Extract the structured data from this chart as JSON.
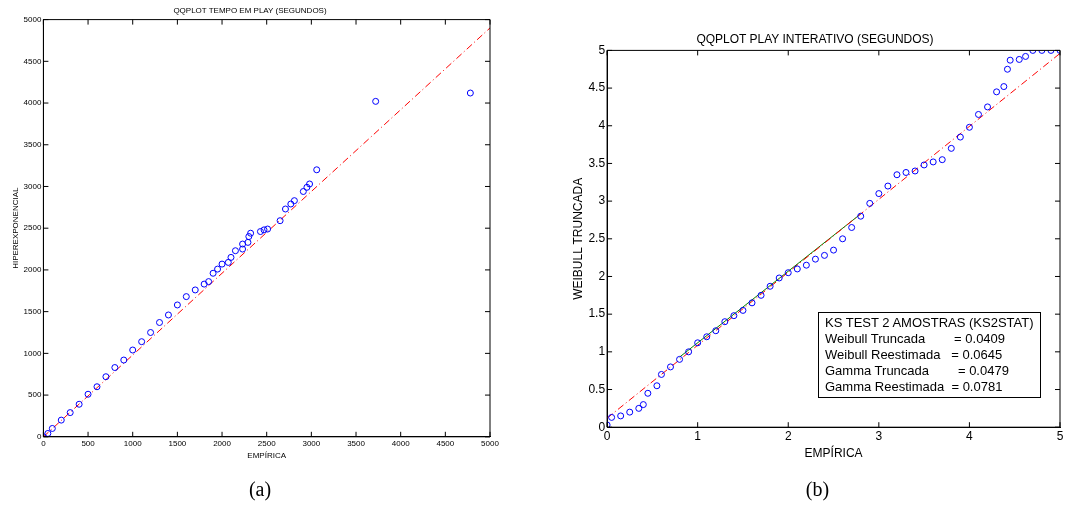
{
  "chart_data": [
    {
      "type": "scatter",
      "title": "QQPLOT TEMPO EM PLAY (SEGUNDOS)",
      "xlabel": "EMPÍRICA",
      "ylabel": "HIPEREXPONENCIAL",
      "xlim": [
        0,
        5000
      ],
      "ylim": [
        0,
        5000
      ],
      "xticks": [
        0,
        500,
        1000,
        1500,
        2000,
        2500,
        3000,
        3500,
        4000,
        4500,
        5000
      ],
      "yticks": [
        0,
        500,
        1000,
        1500,
        2000,
        2500,
        3000,
        3500,
        4000,
        4500,
        5000
      ],
      "series": [
        {
          "marker": "circle",
          "color": "#0000ff",
          "x": [
            0,
            50,
            100,
            200,
            300,
            400,
            500,
            600,
            700,
            800,
            900,
            1000,
            1100,
            1200,
            1300,
            1400,
            1500,
            1600,
            1700,
            1800,
            1850,
            1900,
            1950,
            2000,
            2070,
            2100,
            2150,
            2230,
            2230,
            2290,
            2300,
            2320,
            2430,
            2470,
            2510,
            2650,
            2710,
            2770,
            2810,
            2910,
            2950,
            2980,
            3060,
            3720,
            4780
          ],
          "values": [
            0,
            40,
            100,
            200,
            290,
            390,
            510,
            600,
            720,
            830,
            920,
            1040,
            1140,
            1250,
            1370,
            1460,
            1580,
            1680,
            1760,
            1830,
            1860,
            1960,
            2010,
            2070,
            2090,
            2150,
            2230,
            2310,
            2250,
            2330,
            2400,
            2440,
            2460,
            2480,
            2490,
            2590,
            2730,
            2790,
            2830,
            2940,
            2990,
            3030,
            3200,
            4020,
            4120
          ]
        },
        {
          "type": "line",
          "color": "#ff0000",
          "line_style": "dashed",
          "x": [
            0,
            5000
          ],
          "values": [
            0,
            4900
          ]
        }
      ],
      "annotations": [
        "(a)"
      ]
    },
    {
      "type": "scatter",
      "title": "QQPLOT PLAY INTERATIVO (SEGUNDOS)",
      "xlabel": "EMPÍRICA",
      "ylabel": "WEIBULL TRUNCADA",
      "xlim": [
        0,
        5
      ],
      "ylim": [
        0,
        5
      ],
      "xticks": [
        0,
        1,
        2,
        3,
        4,
        5
      ],
      "yticks": [
        0,
        0.5,
        1,
        1.5,
        2,
        2.5,
        3,
        3.5,
        4,
        4.5,
        5
      ],
      "series": [
        {
          "marker": "circle",
          "color": "#0000ff",
          "x": [
            0,
            0.05,
            0.15,
            0.25,
            0.35,
            0.4,
            0.45,
            0.55,
            0.6,
            0.7,
            0.8,
            0.9,
            1.0,
            1.1,
            1.2,
            1.3,
            1.4,
            1.5,
            1.6,
            1.7,
            1.8,
            1.9,
            2.0,
            2.1,
            2.2,
            2.3,
            2.4,
            2.5,
            2.6,
            2.7,
            2.8,
            2.9,
            3.0,
            3.1,
            3.2,
            3.3,
            3.4,
            3.5,
            3.6,
            3.7,
            3.8,
            3.9,
            4.0,
            4.1,
            4.2,
            4.3,
            4.38,
            4.42,
            4.45,
            4.55,
            4.62,
            4.7,
            4.8,
            4.9,
            5
          ],
          "values": [
            0.03,
            0.13,
            0.15,
            0.2,
            0.25,
            0.3,
            0.45,
            0.55,
            0.7,
            0.8,
            0.9,
            1.0,
            1.12,
            1.2,
            1.28,
            1.4,
            1.48,
            1.55,
            1.65,
            1.75,
            1.87,
            1.98,
            2.05,
            2.1,
            2.15,
            2.23,
            2.28,
            2.35,
            2.5,
            2.65,
            2.8,
            2.97,
            3.1,
            3.2,
            3.35,
            3.38,
            3.4,
            3.48,
            3.52,
            3.55,
            3.7,
            3.85,
            3.98,
            4.15,
            4.25,
            4.45,
            4.52,
            4.75,
            4.87,
            4.88,
            4.92,
            5,
            5,
            5,
            5
          ]
        },
        {
          "type": "line",
          "color": "#ff0000",
          "line_style": "dashed",
          "x": [
            0,
            5
          ],
          "values": [
            0.12,
            4.96
          ]
        },
        {
          "type": "line",
          "color": "#008000",
          "line_style": "solid",
          "x": [
            0.8,
            2.8
          ],
          "values": [
            0.93,
            2.83
          ]
        }
      ],
      "annotations": [
        "KS TEST 2 AMOSTRAS (KS2STAT)",
        "Weibull Truncada        = 0.0409",
        "Weibull Reestimada   = 0.0645",
        "Gamma Truncada        = 0.0479",
        "Gamma Reestimada  = 0.0781",
        "(b)"
      ]
    }
  ]
}
